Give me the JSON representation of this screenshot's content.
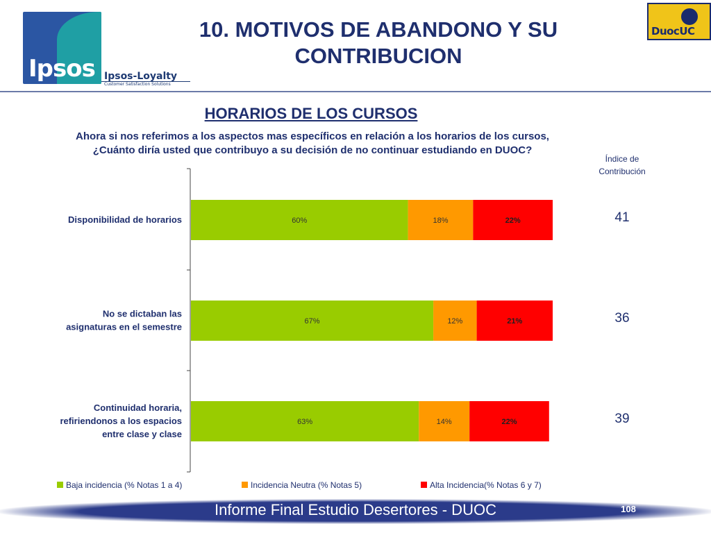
{
  "header": {
    "title_line1": "10. MOTIVOS DE ABANDONO Y SU",
    "title_line2": "CONTRIBUCION",
    "ipsos_logo_text": "Ipsos",
    "ipsos_sub_brand": "Ipsos-Loyalty",
    "ipsos_tagline": "Customer Satisfaction Solutions",
    "duoc_logo_text": "DuocUC"
  },
  "section": {
    "subtitle": "HORARIOS DE LOS CURSOS",
    "question_line1": "Ahora si nos referimos a los aspectos mas específicos en relación a los horarios de los cursos,",
    "question_line2": "¿Cuánto diría usted que contribuyo a su decisión de no continuar estudiando en DUOC?",
    "index_title_line1": "Índice de",
    "index_title_line2": "Contribución"
  },
  "chart_data": {
    "type": "bar",
    "orientation": "horizontal",
    "stacked": true,
    "percent_stacked": true,
    "categories": [
      [
        "Disponibilidad de horarios"
      ],
      [
        "No se dictaban las",
        "asignaturas en el semestre"
      ],
      [
        "Continuidad horaria,",
        "refiriendonos a los espacios",
        "entre clase y clase"
      ]
    ],
    "series": [
      {
        "name": "Baja incidencia (% Notas 1 a 4)",
        "color": "#99cc00",
        "values": [
          60,
          67,
          63
        ],
        "labels": [
          "60%",
          "67%",
          "63%"
        ]
      },
      {
        "name": "Incidencia Neutra (% Notas 5)",
        "color": "#ff9900",
        "values": [
          18,
          12,
          14
        ],
        "labels": [
          "18%",
          "12%",
          "14%"
        ]
      },
      {
        "name": "Alta Incidencia(% Notas 6 y 7)",
        "color": "#ff0000",
        "values": [
          22,
          21,
          22
        ],
        "labels": [
          "22%",
          "21%",
          "22%"
        ]
      }
    ],
    "contribution_index": [
      "41",
      "36",
      "39"
    ],
    "legend_position": "bottom",
    "grid": false
  },
  "footer": {
    "text": "Informe Final Estudio Desertores - DUOC",
    "page_number": "108"
  }
}
